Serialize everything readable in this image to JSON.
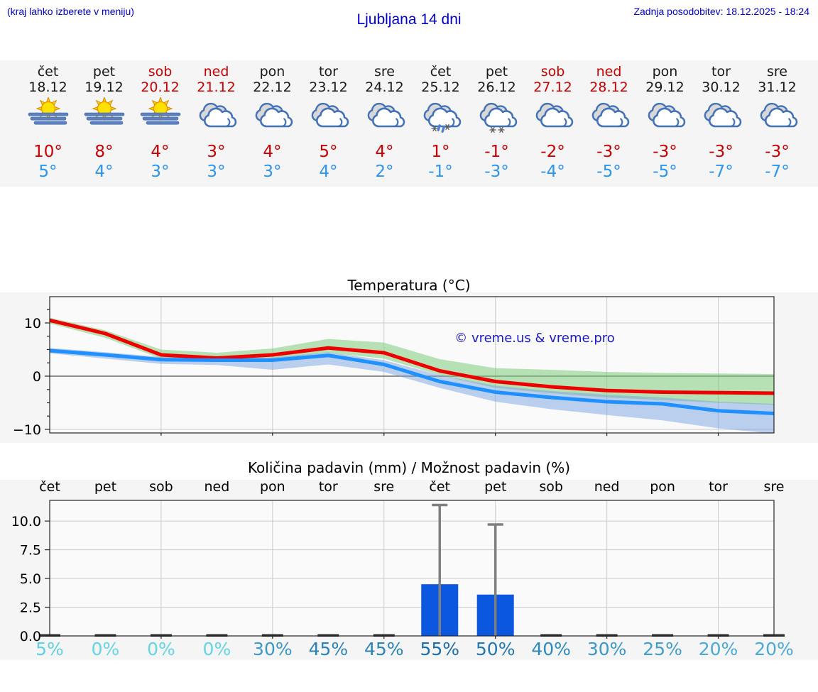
{
  "header": {
    "left_note": "(kraj lahko izberete v meniju)",
    "title": "Ljubljana 14 dni",
    "last_update": "Zadnja posodobitev: 18.12.2025 - 18:24"
  },
  "colors": {
    "accent_blue": "#0000cc",
    "weekend_red": "#cc0000",
    "day_black": "#1a1a1a",
    "high_temp": "#cc0000",
    "low_temp": "#2b95ef",
    "strip_bg": "#f5f5f5",
    "figure_bg": "#f5f5f5",
    "plot_bg": "#fafafa",
    "grid": "#cccccc",
    "zero_line": "#4d4d4d",
    "border": "#262626",
    "watermark": "#1a1acc"
  },
  "forecast": {
    "days": [
      {
        "name": "čet",
        "date": "18.12",
        "weekend": false,
        "icon": "sun-fog",
        "high": "10°",
        "low": "5°"
      },
      {
        "name": "pet",
        "date": "19.12",
        "weekend": false,
        "icon": "sun-fog",
        "high": "8°",
        "low": "4°"
      },
      {
        "name": "sob",
        "date": "20.12",
        "weekend": true,
        "icon": "sun-fog",
        "high": "4°",
        "low": "3°"
      },
      {
        "name": "ned",
        "date": "21.12",
        "weekend": true,
        "icon": "cloudy",
        "high": "3°",
        "low": "3°"
      },
      {
        "name": "pon",
        "date": "22.12",
        "weekend": false,
        "icon": "cloudy",
        "high": "4°",
        "low": "3°"
      },
      {
        "name": "tor",
        "date": "23.12",
        "weekend": false,
        "icon": "cloudy",
        "high": "5°",
        "low": "4°"
      },
      {
        "name": "sre",
        "date": "24.12",
        "weekend": false,
        "icon": "cloudy",
        "high": "4°",
        "low": "2°"
      },
      {
        "name": "čet",
        "date": "25.12",
        "weekend": false,
        "icon": "sleet",
        "high": "1°",
        "low": "-1°"
      },
      {
        "name": "pet",
        "date": "26.12",
        "weekend": false,
        "icon": "snow",
        "high": "-1°",
        "low": "-3°"
      },
      {
        "name": "sob",
        "date": "27.12",
        "weekend": true,
        "icon": "cloudy",
        "high": "-2°",
        "low": "-4°"
      },
      {
        "name": "ned",
        "date": "28.12",
        "weekend": true,
        "icon": "cloudy",
        "high": "-3°",
        "low": "-5°"
      },
      {
        "name": "pon",
        "date": "29.12",
        "weekend": false,
        "icon": "cloudy",
        "high": "-3°",
        "low": "-5°"
      },
      {
        "name": "tor",
        "date": "30.12",
        "weekend": false,
        "icon": "cloudy",
        "high": "-3°",
        "low": "-7°"
      },
      {
        "name": "sre",
        "date": "31.12",
        "weekend": false,
        "icon": "cloudy",
        "high": "-3°",
        "low": "-7°"
      }
    ]
  },
  "chart_data": [
    {
      "type": "line",
      "title": "Temperatura (°C)",
      "categories": [
        "18.12",
        "19.12",
        "20.12",
        "21.12",
        "22.12",
        "23.12",
        "24.12",
        "25.12",
        "26.12",
        "27.12",
        "28.12",
        "29.12",
        "30.12",
        "31.12"
      ],
      "yticks": [
        -10,
        0,
        10
      ],
      "minor_yticks": [
        -7.5,
        -5,
        -2.5,
        2.5,
        5,
        7.5,
        12.5
      ],
      "ylim": [
        -10.7,
        14.9
      ],
      "grid_day_indices": [
        2,
        4,
        6,
        8,
        10,
        12
      ],
      "watermark": "© vreme.us & vreme.pro",
      "series": [
        {
          "name": "max_temp",
          "color": "#ee0000",
          "values": [
            10.5,
            8,
            4,
            3.4,
            4,
            5.3,
            4.4,
            1,
            -1,
            -2,
            -2.7,
            -3,
            -3.1,
            -3.2
          ]
        },
        {
          "name": "min_temp",
          "color": "#1e90ff",
          "values": [
            4.8,
            4,
            3.1,
            3,
            3,
            3.9,
            2.2,
            -1,
            -3,
            -4,
            -4.8,
            -5.2,
            -6.5,
            -7
          ]
        }
      ],
      "bands": [
        {
          "name": "max_range",
          "color": "#7ccc7c",
          "opacity": 0.55,
          "upper": [
            11,
            8.6,
            5,
            4.4,
            5.2,
            7,
            6.3,
            3.2,
            1.5,
            1.2,
            0.8,
            0.6,
            0.5,
            0.4
          ],
          "lower": [
            9.9,
            7.2,
            3.3,
            2.8,
            3.2,
            4.4,
            3.3,
            0.2,
            -2.2,
            -3.2,
            -4,
            -4.5,
            -5,
            -5.4
          ]
        },
        {
          "name": "min_range",
          "color": "#7aa2e0",
          "opacity": 0.5,
          "upper": [
            5.3,
            4.5,
            3.6,
            3.4,
            3.5,
            4.5,
            3,
            0.2,
            -1.8,
            -2.8,
            -3.5,
            -4,
            -4.8,
            -5.2
          ],
          "lower": [
            4.3,
            3.3,
            2.3,
            2.1,
            1.2,
            2.2,
            0.8,
            -2.2,
            -4.8,
            -6.2,
            -7.3,
            -8.3,
            -9.8,
            -10.8
          ]
        }
      ]
    },
    {
      "type": "bar",
      "title": "Količina padavin (mm) / Možnost padavin (%)",
      "categories": [
        "čet",
        "pet",
        "sob",
        "ned",
        "pon",
        "tor",
        "sre",
        "čet",
        "pet",
        "sob",
        "ned",
        "pon",
        "tor",
        "sre"
      ],
      "values": [
        0,
        0,
        0,
        0,
        0,
        0,
        0,
        4.5,
        3.6,
        0,
        0,
        0,
        0,
        0
      ],
      "whisker_max": [
        0,
        0,
        0,
        0,
        0,
        0,
        0,
        11.4,
        9.7,
        0,
        0,
        0,
        0,
        0
      ],
      "yticks": [
        0,
        2.5,
        5,
        7.5,
        10
      ],
      "ytick_labels": [
        "0.0",
        "2.5",
        "5.0",
        "7.5",
        "10.0"
      ],
      "ylim": [
        0,
        11.8
      ],
      "grid_day_indices": [
        2,
        4,
        6,
        8,
        10,
        12
      ],
      "bar_color": "#0b57e0",
      "whisker_color": "#7f7f7f",
      "probabilities": [
        "5%",
        "0%",
        "0%",
        "0%",
        "30%",
        "45%",
        "45%",
        "55%",
        "50%",
        "40%",
        "30%",
        "25%",
        "20%",
        "20%"
      ],
      "prob_colors": [
        "#5fd1e5",
        "#62d5e9",
        "#62d5e9",
        "#62d5e9",
        "#3b97c9",
        "#2a84bb",
        "#2a84bb",
        "#1b6dac",
        "#2177b4",
        "#2f8ac0",
        "#3b97c9",
        "#429ed0",
        "#4ba9d8",
        "#4ba9d8"
      ]
    }
  ]
}
